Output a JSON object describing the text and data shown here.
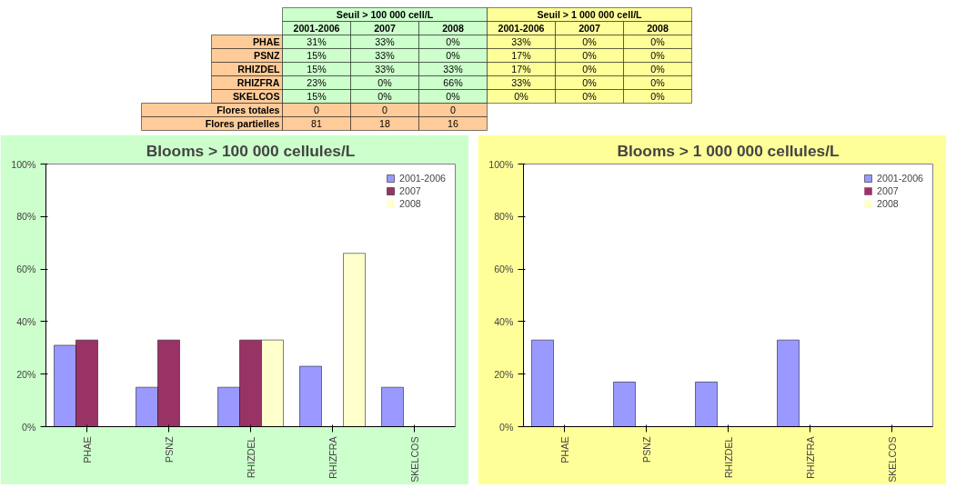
{
  "chart_data": [
    {
      "type": "other",
      "categories": [
        "2001-2006",
        "2007",
        "2008",
        "2001-2006",
        "2007",
        "2008"
      ],
      "y_categories": [
        "PHAE",
        "PSNZ",
        "RHIZDEL",
        "RHIZFRA",
        "SKELCOS",
        "Flores totales",
        "Flores partielles"
      ],
      "cell_labels": [
        [
          "31%",
          "33%",
          "0%",
          "33%",
          "0%",
          "0%"
        ],
        [
          "15%",
          "33%",
          "0%",
          "17%",
          "0%",
          "0%"
        ],
        [
          "15%",
          "33%",
          "33%",
          "17%",
          "0%",
          "0%"
        ],
        [
          "23%",
          "0%",
          "66%",
          "33%",
          "0%",
          "0%"
        ],
        [
          "15%",
          "0%",
          "0%",
          "0%",
          "0%",
          "0%"
        ],
        [
          "0",
          "0",
          "0",
          null,
          null,
          null
        ],
        [
          "81",
          "18",
          "16",
          null,
          null,
          null
        ]
      ],
      "annotations": [
        "Seuil > 100 000 cell/L",
        "Seuil > 1 000 000 cell/L"
      ]
    },
    {
      "type": "bar",
      "title": "Blooms > 100 000 cellules/L",
      "categories": [
        "PHAE",
        "PSNZ",
        "RHIZDEL",
        "RHIZFRA",
        "SKELCOS"
      ],
      "series": [
        {
          "name": "2001-2006",
          "color": "#9999ff",
          "values": [
            31,
            15,
            15,
            23,
            15
          ]
        },
        {
          "name": "2007",
          "color": "#993366",
          "values": [
            33,
            33,
            33,
            0,
            0
          ]
        },
        {
          "name": "2008",
          "color": "#ffffcc",
          "values": [
            0,
            0,
            33,
            66,
            0
          ]
        }
      ],
      "ylim": [
        0,
        100
      ],
      "yticks": [
        {
          "value": 0,
          "label": "0%"
        },
        {
          "value": 20,
          "label": "20%"
        },
        {
          "value": 40,
          "label": "40%"
        },
        {
          "value": 60,
          "label": "60%"
        },
        {
          "value": 80,
          "label": "80%"
        },
        {
          "value": 100,
          "label": "100%"
        }
      ],
      "legend": "top right",
      "grid": false
    },
    {
      "type": "bar",
      "title": "Blooms > 1 000 000 cellules/L",
      "categories": [
        "PHAE",
        "PSNZ",
        "RHIZDEL",
        "RHIZFRA",
        "SKELCOS"
      ],
      "series": [
        {
          "name": "2001-2006",
          "color": "#9999ff",
          "values": [
            33,
            17,
            17,
            33,
            0
          ]
        },
        {
          "name": "2007",
          "color": "#993366",
          "values": [
            0,
            0,
            0,
            0,
            0
          ]
        },
        {
          "name": "2008",
          "color": "#ffffcc",
          "values": [
            0,
            0,
            0,
            0,
            0
          ]
        }
      ],
      "ylim": [
        0,
        100
      ],
      "yticks": [
        {
          "value": 0,
          "label": "0%"
        },
        {
          "value": 20,
          "label": "20%"
        },
        {
          "value": 40,
          "label": "40%"
        },
        {
          "value": 60,
          "label": "60%"
        },
        {
          "value": 80,
          "label": "80%"
        },
        {
          "value": 100,
          "label": "100%"
        }
      ],
      "legend": "top right",
      "grid": false
    }
  ]
}
